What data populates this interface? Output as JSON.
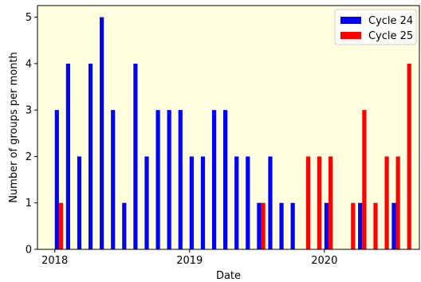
{
  "chart_data": {
    "type": "bar",
    "title": "",
    "xlabel": "Date",
    "ylabel": "Number of groups per month",
    "ylim": [
      0,
      5.25
    ],
    "yticks": [
      0,
      1,
      2,
      3,
      4,
      5
    ],
    "xlim": [
      "2017-11-15",
      "2020-09-15"
    ],
    "xticks": [
      {
        "label": "2018",
        "date": "2018-01-01"
      },
      {
        "label": "2019",
        "date": "2019-01-01"
      },
      {
        "label": "2020",
        "date": "2020-01-01"
      }
    ],
    "grid": false,
    "background": "#ffffdf",
    "legend": {
      "position": "top-right"
    },
    "series": [
      {
        "name": "Cycle 24",
        "color": "#0000ff",
        "points": [
          {
            "x": "2018-01",
            "y": 3
          },
          {
            "x": "2018-02",
            "y": 4
          },
          {
            "x": "2018-03",
            "y": 2
          },
          {
            "x": "2018-04",
            "y": 4
          },
          {
            "x": "2018-05",
            "y": 5
          },
          {
            "x": "2018-06",
            "y": 3
          },
          {
            "x": "2018-07",
            "y": 1
          },
          {
            "x": "2018-08",
            "y": 4
          },
          {
            "x": "2018-09",
            "y": 2
          },
          {
            "x": "2018-10",
            "y": 3
          },
          {
            "x": "2018-11",
            "y": 3
          },
          {
            "x": "2018-12",
            "y": 3
          },
          {
            "x": "2019-01",
            "y": 2
          },
          {
            "x": "2019-02",
            "y": 2
          },
          {
            "x": "2019-03",
            "y": 3
          },
          {
            "x": "2019-04",
            "y": 3
          },
          {
            "x": "2019-05",
            "y": 2
          },
          {
            "x": "2019-06",
            "y": 2
          },
          {
            "x": "2019-07",
            "y": 1
          },
          {
            "x": "2019-08",
            "y": 2
          },
          {
            "x": "2019-09",
            "y": 1
          },
          {
            "x": "2019-10",
            "y": 1
          },
          {
            "x": "2020-01",
            "y": 1
          },
          {
            "x": "2020-04",
            "y": 1
          },
          {
            "x": "2020-07",
            "y": 1
          }
        ]
      },
      {
        "name": "Cycle 25",
        "color": "#ff0000",
        "points": [
          {
            "x": "2018-01",
            "y": 1
          },
          {
            "x": "2019-07",
            "y": 1
          },
          {
            "x": "2019-11",
            "y": 2
          },
          {
            "x": "2019-12",
            "y": 2
          },
          {
            "x": "2020-01",
            "y": 2
          },
          {
            "x": "2020-03",
            "y": 1
          },
          {
            "x": "2020-04",
            "y": 3
          },
          {
            "x": "2020-05",
            "y": 1
          },
          {
            "x": "2020-06",
            "y": 2
          },
          {
            "x": "2020-07",
            "y": 2
          },
          {
            "x": "2020-08",
            "y": 4
          }
        ]
      }
    ]
  }
}
